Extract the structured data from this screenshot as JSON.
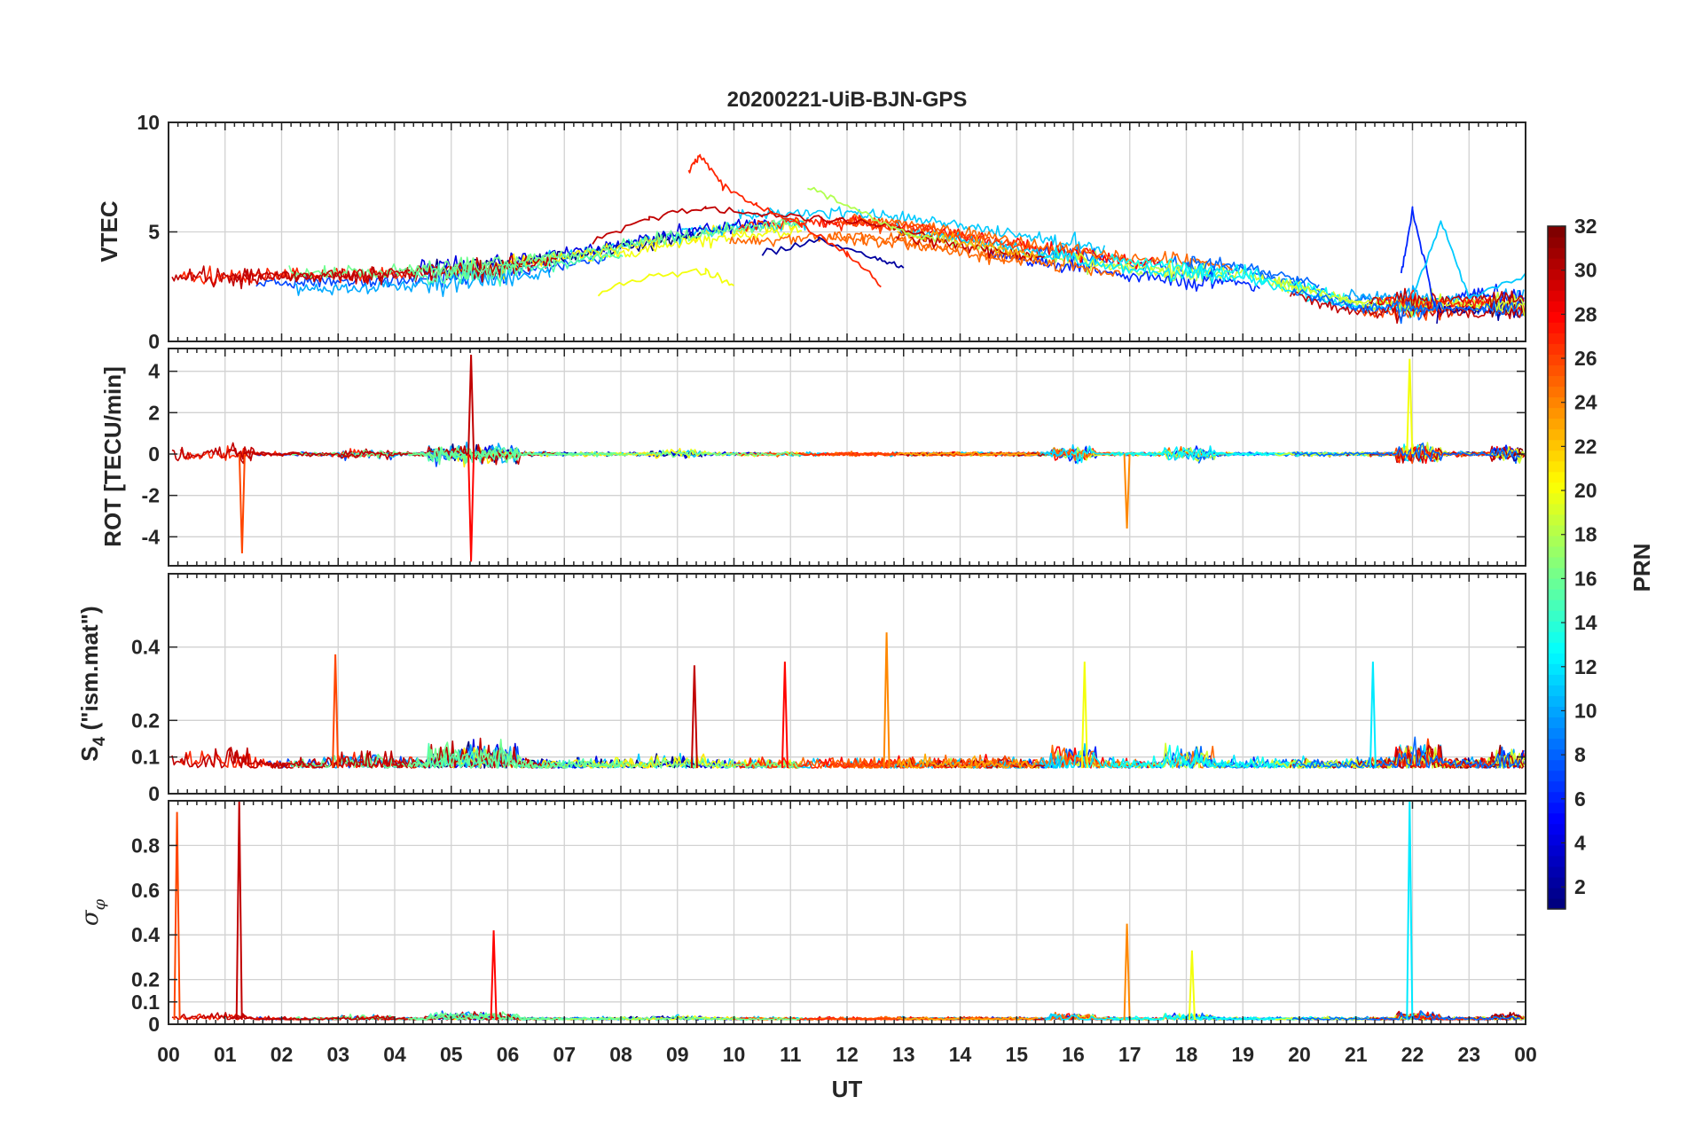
{
  "chart_data": {
    "type": "line",
    "title": "20200221-UiB-BJN-GPS",
    "xlabel": "UT",
    "x_ticks": [
      "00",
      "01",
      "02",
      "03",
      "04",
      "05",
      "06",
      "07",
      "08",
      "09",
      "10",
      "11",
      "12",
      "13",
      "14",
      "15",
      "16",
      "17",
      "18",
      "19",
      "20",
      "21",
      "22",
      "23",
      "00"
    ],
    "xlim_hours": [
      0,
      24
    ],
    "grid": true,
    "colorbar": {
      "label": "PRN",
      "range": [
        1,
        32
      ],
      "ticks": [
        "2",
        "4",
        "6",
        "8",
        "10",
        "12",
        "14",
        "16",
        "18",
        "20",
        "22",
        "24",
        "26",
        "28",
        "30",
        "32"
      ],
      "colormap": "jet"
    },
    "panels": [
      {
        "id": "vtec",
        "ylabel": "VTEC",
        "ylim": [
          0,
          10
        ],
        "ytick_values": [
          0,
          5,
          10
        ],
        "ytick_labels": [
          "0",
          "5",
          "10"
        ],
        "approx_series": [
          {
            "name": "PRN 2",
            "x": [
              10.5,
              11.5,
              12.5,
              13.0
            ],
            "y": [
              4.0,
              4.6,
              3.8,
              3.3
            ]
          },
          {
            "name": "PRN 30",
            "x": [
              7.5,
              8.5,
              9.5,
              10.5,
              11.5,
              12.5,
              13.5
            ],
            "y": [
              4.6,
              5.6,
              6.1,
              5.8,
              5.6,
              5.3,
              4.8
            ]
          },
          {
            "name": "PRN 27",
            "x": [
              9.2,
              9.4,
              9.8,
              10.4,
              11.2,
              12.0,
              12.6
            ],
            "y": [
              7.8,
              8.5,
              7.1,
              6.2,
              5.3,
              4.0,
              2.6
            ]
          },
          {
            "name": "PRN 20",
            "x": [
              7.6,
              8.5,
              9.5,
              10.0
            ],
            "y": [
              2.2,
              3.0,
              3.2,
              2.5
            ]
          },
          {
            "name": "PRN 18",
            "x": [
              11.3,
              12.0,
              12.8,
              13.5
            ],
            "y": [
              7.0,
              6.2,
              5.2,
              4.6
            ]
          },
          {
            "name": "PRN 6",
            "x": [
              21.8,
              22.0,
              22.4
            ],
            "y": [
              3.0,
              6.0,
              1.5
            ]
          },
          {
            "name": "PRN 11",
            "x": [
              22.0,
              22.5,
              23.0,
              24.0
            ],
            "y": [
              2.0,
              5.5,
              2.0,
              3.0
            ]
          }
        ]
      },
      {
        "id": "rot",
        "ylabel": "ROT [TECU/min]",
        "ylim": [
          -5.4,
          5.1
        ],
        "ytick_values": [
          -4,
          -2,
          0,
          2,
          4
        ],
        "ytick_labels": [
          "-4",
          "-2",
          "0",
          "2",
          "4"
        ],
        "notable_spikes": [
          {
            "x": 1.3,
            "y": -4.8
          },
          {
            "x": 5.35,
            "y": 4.8
          },
          {
            "x": 5.35,
            "y": -5.2
          },
          {
            "x": 16.95,
            "y": -3.6
          },
          {
            "x": 21.95,
            "y": 4.6
          }
        ]
      },
      {
        "id": "s4",
        "ylabel": "S4 (\"ism.mat\")",
        "ylabel_parts": {
          "main": "S",
          "sub": "4",
          "rest": " (\"ism.mat\")"
        },
        "ylim": [
          0,
          0.6
        ],
        "ytick_values": [
          0,
          0.1,
          0.2,
          0.4
        ],
        "ytick_labels": [
          "0",
          "0.1",
          "0.2",
          "0.4"
        ],
        "baseline": 0.07,
        "notable_peaks": [
          {
            "x": 2.95,
            "y": 0.38
          },
          {
            "x": 9.3,
            "y": 0.35
          },
          {
            "x": 10.9,
            "y": 0.36
          },
          {
            "x": 12.7,
            "y": 0.44
          },
          {
            "x": 16.2,
            "y": 0.36
          },
          {
            "x": 21.3,
            "y": 0.36
          }
        ]
      },
      {
        "id": "sigma_phi",
        "ylabel": "σφ",
        "ylabel_parts": {
          "main": "σ",
          "sub": "φ"
        },
        "ylim": [
          0,
          1.0
        ],
        "ytick_values": [
          0,
          0.1,
          0.2,
          0.4,
          0.6,
          0.8
        ],
        "ytick_labels": [
          "0",
          "0.1",
          "0.2",
          "0.4",
          "0.6",
          "0.8"
        ],
        "baseline": 0.02,
        "notable_peaks": [
          {
            "x": 0.15,
            "y": 0.95
          },
          {
            "x": 1.25,
            "y": 1.0
          },
          {
            "x": 5.75,
            "y": 0.42
          },
          {
            "x": 16.95,
            "y": 0.45
          },
          {
            "x": 18.1,
            "y": 0.33
          },
          {
            "x": 21.95,
            "y": 1.0
          }
        ]
      }
    ]
  }
}
